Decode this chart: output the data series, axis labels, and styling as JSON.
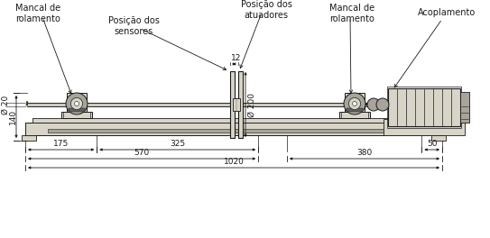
{
  "bg_color": "#ffffff",
  "line_color": "#1a1a1a",
  "gray_light": "#d8d5c8",
  "gray_mid": "#a8a49a",
  "gray_dark": "#606060",
  "gray_base": "#cdc9bc",
  "labels": {
    "mancal_left": "Mancal de\nrolamento",
    "posicao_sensores": "Posição dos\nsensores",
    "posicao_atuadores": "Posição dos\natuadores",
    "mancal_right": "Mancal de\nrolamento",
    "acoplamento": "Acoplamento",
    "d20": "Ø 20",
    "d200": "Ø 200",
    "dim_12": "12",
    "dim_140": "140",
    "dim_175": "175",
    "dim_325": "325",
    "dim_50": "50",
    "dim_570": "570",
    "dim_380": "380",
    "dim_1020": "1020"
  },
  "fontsize_label": 7.0,
  "fontsize_dim": 6.5
}
